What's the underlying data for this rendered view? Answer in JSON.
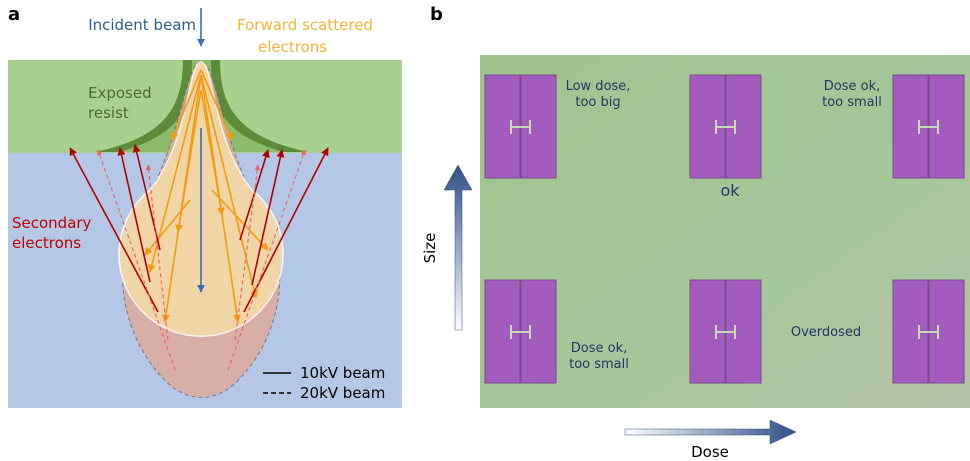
{
  "panel_a": {
    "label": "a",
    "incident_beam": "Incident beam",
    "forward_scattered": [
      "Forward scattered",
      "electrons"
    ],
    "exposed_resist": [
      "Exposed",
      "resist"
    ],
    "secondary_electrons": [
      "Secondary",
      "electrons"
    ],
    "legend": [
      "10kV beam",
      "20kV beam"
    ]
  },
  "panel_b": {
    "label": "b",
    "pads": [
      [
        "Low dose,",
        "too big"
      ],
      [
        "ok"
      ],
      [
        "Dose ok,",
        "too small"
      ],
      [
        "Dose ok,",
        "too small"
      ],
      [
        "Overdosed"
      ]
    ],
    "size_axis": "Size",
    "dose_axis": "Dose"
  }
}
